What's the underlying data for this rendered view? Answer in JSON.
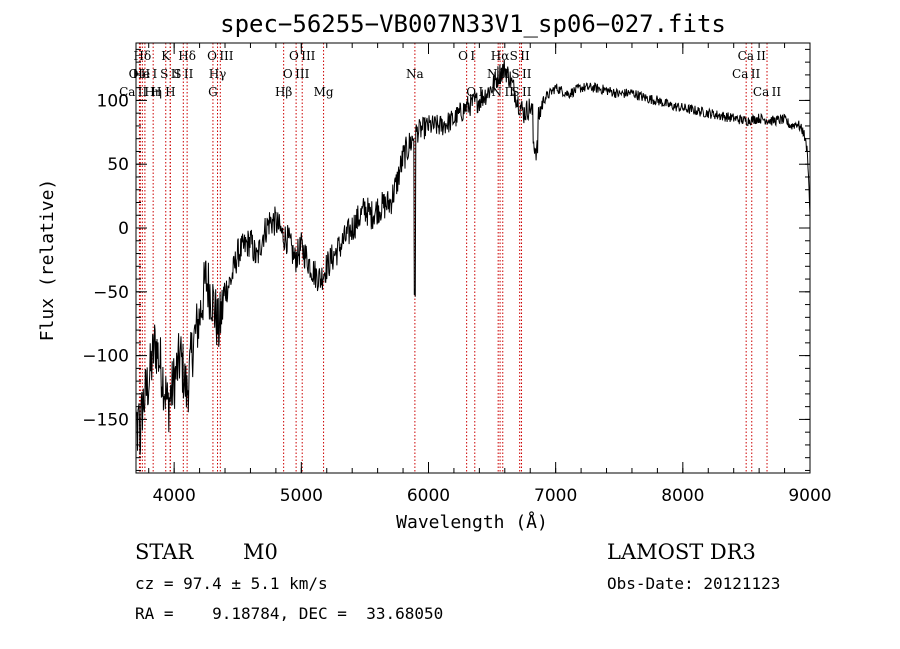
{
  "chart_data": {
    "type": "line",
    "title": "spec−56255−VB007N33V1_sp06−027.fits",
    "xlabel": "Wavelength (Å)",
    "ylabel": "Flux (relative)",
    "xlim": [
      3700,
      9000
    ],
    "ylim": [
      -192,
      145
    ],
    "x_ticks": [
      {
        "value": 4000,
        "label": "4000"
      },
      {
        "value": 5000,
        "label": "5000"
      },
      {
        "value": 6000,
        "label": "6000"
      },
      {
        "value": 7000,
        "label": "7000"
      },
      {
        "value": 8000,
        "label": "8000"
      },
      {
        "value": 9000,
        "label": "9000"
      }
    ],
    "y_ticks": [
      {
        "value": -150,
        "label": "−150"
      },
      {
        "value": -100,
        "label": "−100"
      },
      {
        "value": -50,
        "label": "−50"
      },
      {
        "value": 0,
        "label": "0"
      },
      {
        "value": 50,
        "label": "50"
      },
      {
        "value": 100,
        "label": "100"
      }
    ],
    "x_minor_step": 200,
    "y_minor_step": 10,
    "spectrum_anchors": [
      [
        3700,
        -150
      ],
      [
        3720,
        -180
      ],
      [
        3750,
        -140
      ],
      [
        3800,
        -120
      ],
      [
        3850,
        -90
      ],
      [
        3900,
        -110
      ],
      [
        3950,
        -140
      ],
      [
        4000,
        -120
      ],
      [
        4050,
        -100
      ],
      [
        4100,
        -130
      ],
      [
        4150,
        -90
      ],
      [
        4200,
        -70
      ],
      [
        4250,
        -40
      ],
      [
        4300,
        -55
      ],
      [
        4350,
        -80
      ],
      [
        4400,
        -50
      ],
      [
        4450,
        -40
      ],
      [
        4500,
        -20
      ],
      [
        4550,
        -15
      ],
      [
        4600,
        -10
      ],
      [
        4650,
        -25
      ],
      [
        4700,
        -5
      ],
      [
        4750,
        5
      ],
      [
        4800,
        5
      ],
      [
        4850,
        -5
      ],
      [
        4900,
        -10
      ],
      [
        4950,
        -25
      ],
      [
        5000,
        -15
      ],
      [
        5050,
        -25
      ],
      [
        5100,
        -35
      ],
      [
        5150,
        -40
      ],
      [
        5200,
        -30
      ],
      [
        5300,
        -15
      ],
      [
        5400,
        0
      ],
      [
        5500,
        15
      ],
      [
        5550,
        10
      ],
      [
        5600,
        15
      ],
      [
        5700,
        20
      ],
      [
        5750,
        35
      ],
      [
        5800,
        55
      ],
      [
        5850,
        65
      ],
      [
        5900,
        75
      ],
      [
        6000,
        80
      ],
      [
        6100,
        80
      ],
      [
        6200,
        85
      ],
      [
        6300,
        95
      ],
      [
        6400,
        100
      ],
      [
        6450,
        105
      ],
      [
        6500,
        110
      ],
      [
        6550,
        120
      ],
      [
        6600,
        125
      ],
      [
        6650,
        115
      ],
      [
        6700,
        100
      ],
      [
        6750,
        90
      ],
      [
        6800,
        95
      ],
      [
        6850,
        80
      ],
      [
        6900,
        100
      ],
      [
        7000,
        110
      ],
      [
        7100,
        105
      ],
      [
        7200,
        110
      ],
      [
        7300,
        110
      ],
      [
        7400,
        108
      ],
      [
        7500,
        105
      ],
      [
        7600,
        106
      ],
      [
        7700,
        102
      ],
      [
        7800,
        100
      ],
      [
        7900,
        96
      ],
      [
        8000,
        94
      ],
      [
        8100,
        92
      ],
      [
        8200,
        90
      ],
      [
        8300,
        88
      ],
      [
        8400,
        86
      ],
      [
        8500,
        84
      ],
      [
        8600,
        86
      ],
      [
        8700,
        84
      ],
      [
        8800,
        85
      ],
      [
        8850,
        80
      ],
      [
        8900,
        82
      ],
      [
        8950,
        75
      ],
      [
        8980,
        60
      ],
      [
        9000,
        10
      ]
    ],
    "spectral_lines": [
      {
        "name": "O II",
        "wavelength": 3727,
        "row": 1
      },
      {
        "name": "Ca II H",
        "wavelength": 3734,
        "row": 2
      },
      {
        "name": "Hδ",
        "wavelength": 3750,
        "row": 0
      },
      {
        "name": "He I",
        "wavelength": 3770,
        "row": 1
      },
      {
        "name": "Hη",
        "wavelength": 3835,
        "row": 2
      },
      {
        "name": "K",
        "wavelength": 3934,
        "row": 0
      },
      {
        "name": "S II",
        "wavelength": 3969,
        "row": 1
      },
      {
        "name": "H",
        "wavelength": 3970,
        "row": 2
      },
      {
        "name": "Hδ",
        "wavelength": 4102,
        "row": 0
      },
      {
        "name": "S II",
        "wavelength": 4072,
        "row": 1
      },
      {
        "name": "O III",
        "wavelength": 4363,
        "row": 0
      },
      {
        "name": "Hγ",
        "wavelength": 4341,
        "row": 1
      },
      {
        "name": "G",
        "wavelength": 4305,
        "row": 2
      },
      {
        "name": "Hβ",
        "wavelength": 4861,
        "row": 2
      },
      {
        "name": "O III",
        "wavelength": 5007,
        "row": 0
      },
      {
        "name": "O III",
        "wavelength": 4959,
        "row": 1
      },
      {
        "name": "Mg",
        "wavelength": 5175,
        "row": 2
      },
      {
        "name": "Na",
        "wavelength": 5893,
        "row": 1
      },
      {
        "name": "O I",
        "wavelength": 6300,
        "row": 0
      },
      {
        "name": "O I",
        "wavelength": 6364,
        "row": 2
      },
      {
        "name": "Hα",
        "wavelength": 6563,
        "row": 0
      },
      {
        "name": "N II",
        "wavelength": 6584,
        "row": 2
      },
      {
        "name": "N II",
        "wavelength": 6548,
        "row": 1
      },
      {
        "name": "S II",
        "wavelength": 6717,
        "row": 0
      },
      {
        "name": "S II",
        "wavelength": 6731,
        "row": 1
      },
      {
        "name": "S II",
        "wavelength": 6731,
        "row": 2
      },
      {
        "name": "Ca II",
        "wavelength": 8498,
        "row": 1
      },
      {
        "name": "Ca II",
        "wavelength": 8542,
        "row": 0
      },
      {
        "name": "Ca II",
        "wavelength": 8662,
        "row": 2
      }
    ],
    "colors": {
      "spectrum": "#000000",
      "line_marker": "#cc0000",
      "axes": "#000000"
    }
  },
  "info": {
    "object_class": "STAR",
    "subclass": "M0",
    "survey": "LAMOST DR3",
    "redshift": "cz = 97.4 ± 5.1 km/s",
    "obs_date": "Obs-Date: 20121123",
    "coords": "RA =    9.18784, DEC =  33.68050"
  }
}
